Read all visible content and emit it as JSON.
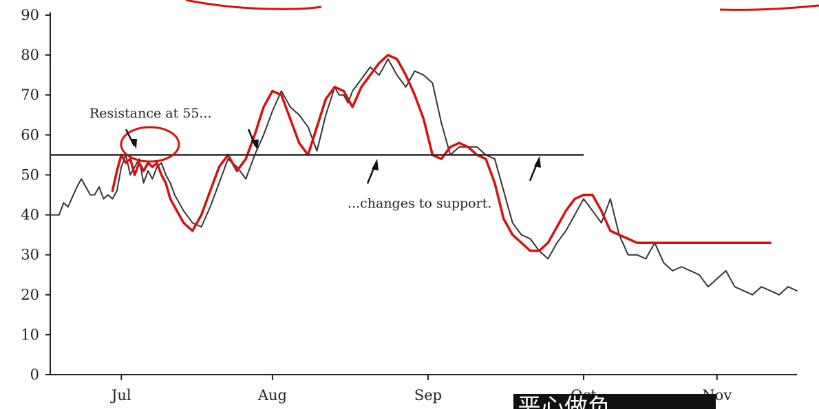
{
  "chart_data": {
    "type": "line",
    "ylim": [
      0,
      90
    ],
    "yticks": [
      "0",
      "10",
      "20",
      "30",
      "40",
      "50",
      "60",
      "70",
      "80",
      "90"
    ],
    "x_range": [
      0,
      168
    ],
    "x_categories": [
      {
        "label": "Jul",
        "x": 16
      },
      {
        "label": "Aug",
        "x": 50
      },
      {
        "label": "Sep",
        "x": 85
      },
      {
        "label": "Oct",
        "x": 120
      },
      {
        "label": "Nov",
        "x": 150
      }
    ],
    "grid": false,
    "series": [
      {
        "color": "#333333",
        "x": [
          0,
          2,
          3,
          4,
          6,
          7,
          8,
          9,
          10,
          11,
          12,
          13,
          14,
          15,
          16,
          17,
          18,
          19,
          20,
          21,
          22,
          23,
          24,
          25,
          26,
          27,
          28,
          30,
          32,
          34,
          36,
          38,
          40,
          42,
          44,
          46,
          48,
          50,
          52,
          54,
          56,
          58,
          60,
          62,
          64,
          65,
          66,
          67,
          68,
          70,
          72,
          74,
          76,
          78,
          80,
          82,
          84,
          86,
          88,
          90,
          92,
          94,
          96,
          98,
          100,
          102,
          104,
          106,
          108,
          110,
          112,
          114,
          116,
          118,
          120,
          122,
          124,
          126,
          128,
          130,
          132,
          134,
          136,
          138,
          140,
          142,
          144,
          146,
          148,
          150,
          152,
          154,
          156,
          158,
          160,
          162,
          164,
          166,
          168
        ],
        "values": [
          40,
          40,
          43,
          42,
          47,
          49,
          47,
          45,
          45,
          47,
          44,
          45,
          44,
          46,
          52,
          55,
          50,
          52,
          54,
          48,
          51,
          49,
          52,
          53,
          50,
          48,
          45,
          41,
          38,
          37,
          42,
          48,
          54,
          52,
          49,
          55,
          60,
          66,
          71,
          67,
          65,
          62,
          56,
          65,
          72,
          70,
          70,
          68,
          71,
          74,
          77,
          75,
          79,
          75,
          72,
          76,
          75,
          73,
          63,
          55,
          57,
          57,
          57,
          55,
          54,
          46,
          38,
          35,
          34,
          31,
          29,
          33,
          36,
          40,
          44,
          41,
          38,
          44,
          35,
          30,
          30,
          29,
          33,
          28,
          26,
          27,
          26,
          25,
          22,
          24,
          26,
          22,
          21,
          20,
          22,
          21,
          20,
          22,
          21
        ]
      },
      {
        "color": "#d90f0f",
        "x": [
          14,
          15,
          16,
          17,
          18,
          19,
          20,
          21,
          22,
          23,
          24,
          25,
          26,
          27,
          28,
          30,
          32,
          34,
          36,
          38,
          40,
          42,
          44,
          46,
          48,
          50,
          52,
          54,
          56,
          58,
          60,
          62,
          64,
          66,
          68,
          70,
          72,
          74,
          76,
          78,
          80,
          82,
          84,
          86,
          88,
          90,
          92,
          94,
          96,
          98,
          100,
          102,
          104,
          106,
          108,
          110,
          112,
          114,
          116,
          118,
          120,
          122,
          124,
          126,
          128,
          130,
          132,
          134,
          136,
          138,
          140,
          142,
          144,
          146,
          148,
          150,
          152,
          154,
          156,
          158,
          160,
          162
        ],
        "values": [
          46,
          51,
          55,
          53,
          54,
          50,
          53,
          51,
          53,
          52,
          53,
          50,
          48,
          44,
          42,
          38,
          36,
          40,
          46,
          52,
          55,
          51,
          54,
          60,
          67,
          71,
          70,
          64,
          58,
          55,
          62,
          69,
          72,
          71,
          67,
          72,
          75,
          78,
          80,
          79,
          75,
          70,
          64,
          55,
          54,
          57,
          58,
          57,
          55,
          54,
          48,
          39,
          35,
          33,
          31,
          31,
          33,
          37,
          41,
          44,
          45,
          45,
          41,
          36,
          35,
          34,
          33,
          33,
          33,
          33,
          33,
          33,
          33,
          33,
          33,
          33,
          33,
          33,
          33,
          33,
          33,
          33
        ]
      }
    ],
    "resistance_line": {
      "y": 55,
      "x_start": 0,
      "x_end": 120
    },
    "annotations": {
      "resistance_label": "Resistance at 55...",
      "support_label": "...changes to support."
    }
  },
  "overlay": {
    "subtitle": "恶心做负"
  }
}
